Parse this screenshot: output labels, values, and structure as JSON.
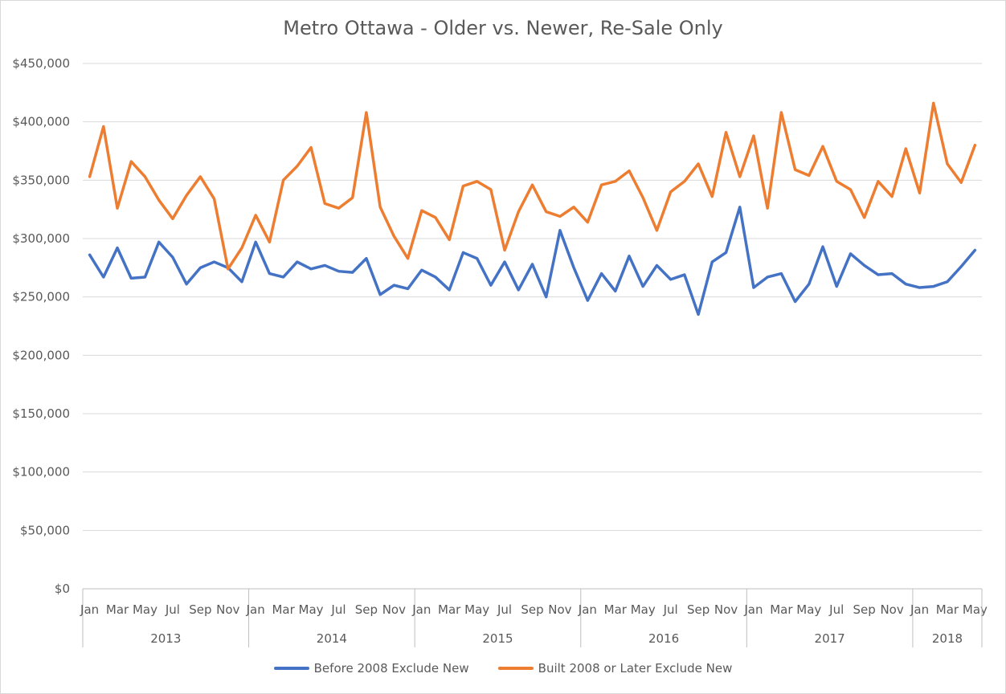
{
  "chart_data": {
    "type": "line",
    "title": "Metro Ottawa - Older vs. Newer, Re-Sale Only",
    "xlabel": "",
    "ylabel": "",
    "ylim": [
      0,
      450000
    ],
    "yticks": [
      0,
      50000,
      100000,
      150000,
      200000,
      250000,
      300000,
      350000,
      400000,
      450000
    ],
    "ytick_labels": [
      "$0",
      "$50,000",
      "$100,000",
      "$150,000",
      "$200,000",
      "$250,000",
      "$300,000",
      "$350,000",
      "$400,000",
      "$450,000"
    ],
    "grid": true,
    "legend_position": "bottom",
    "month_labels": [
      "Jan",
      "",
      "Mar",
      "",
      "May",
      "",
      "Jul",
      "",
      "Sep",
      "",
      "Nov",
      ""
    ],
    "years": [
      {
        "label": "2013",
        "months": 12
      },
      {
        "label": "2014",
        "months": 12
      },
      {
        "label": "2015",
        "months": 12
      },
      {
        "label": "2016",
        "months": 12
      },
      {
        "label": "2017",
        "months": 12
      },
      {
        "label": "2018",
        "months": 5
      }
    ],
    "series": [
      {
        "name": "Before 2008 Exclude New",
        "color": "#4472c4",
        "values": [
          286000,
          267000,
          292000,
          266000,
          267000,
          297000,
          284000,
          261000,
          275000,
          280000,
          275000,
          263000,
          297000,
          270000,
          267000,
          280000,
          274000,
          277000,
          272000,
          271000,
          283000,
          252000,
          260000,
          257000,
          273000,
          267000,
          256000,
          288000,
          283000,
          260000,
          280000,
          256000,
          278000,
          250000,
          307000,
          275000,
          247000,
          270000,
          255000,
          285000,
          259000,
          277000,
          265000,
          269000,
          235000,
          280000,
          288000,
          327000,
          258000,
          267000,
          270000,
          246000,
          261000,
          293000,
          259000,
          287000,
          277000,
          269000,
          270000,
          261000,
          258000,
          259000,
          263000,
          276000,
          290000
        ]
      },
      {
        "name": "Built 2008 or Later Exclude New",
        "color": "#ed7d31",
        "values": [
          353000,
          396000,
          326000,
          366000,
          353000,
          333000,
          317000,
          337000,
          353000,
          334000,
          274000,
          292000,
          320000,
          297000,
          350000,
          362000,
          378000,
          330000,
          326000,
          335000,
          408000,
          327000,
          302000,
          283000,
          324000,
          318000,
          299000,
          345000,
          349000,
          342000,
          290000,
          323000,
          346000,
          323000,
          319000,
          327000,
          314000,
          346000,
          349000,
          358000,
          335000,
          307000,
          340000,
          349000,
          364000,
          336000,
          391000,
          353000,
          388000,
          326000,
          408000,
          359000,
          354000,
          379000,
          349000,
          342000,
          318000,
          349000,
          336000,
          377000,
          339000,
          416000,
          364000,
          348000,
          380000
        ]
      }
    ]
  }
}
